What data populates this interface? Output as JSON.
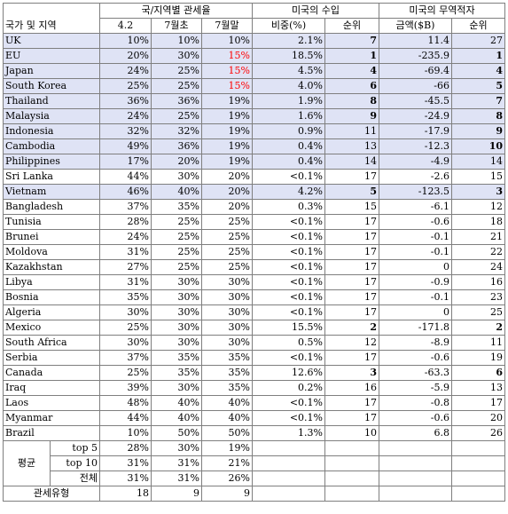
{
  "headers": {
    "country": "국가 및 지역",
    "tariff_group": "국/지역별 관세율",
    "tariff_cols": [
      "4.2",
      "7월초",
      "7월말"
    ],
    "import_group": "미국의 수입",
    "import_cols": [
      "비중(%)",
      "순위"
    ],
    "deficit_group": "미국의 무역적자",
    "deficit_cols": [
      "금액($B)",
      "순위"
    ]
  },
  "rows": [
    {
      "name": "UK",
      "t1": "10%",
      "t2": "10%",
      "t3": "10%",
      "share": "2.1%",
      "rank1": "7",
      "amt": "11.4",
      "rank2": "27",
      "hl": true,
      "red3": false,
      "bold1": true,
      "bold2": false
    },
    {
      "name": "EU",
      "t1": "20%",
      "t2": "30%",
      "t3": "15%",
      "share": "18.5%",
      "rank1": "1",
      "amt": "-235.9",
      "rank2": "1",
      "hl": true,
      "red3": true,
      "bold1": true,
      "bold2": true
    },
    {
      "name": "Japan",
      "t1": "24%",
      "t2": "25%",
      "t3": "15%",
      "share": "4.5%",
      "rank1": "4",
      "amt": "-69.4",
      "rank2": "4",
      "hl": true,
      "red3": true,
      "bold1": true,
      "bold2": true
    },
    {
      "name": "South Korea",
      "t1": "25%",
      "t2": "25%",
      "t3": "15%",
      "share": "4.0%",
      "rank1": "6",
      "amt": "-66",
      "rank2": "5",
      "hl": true,
      "red3": true,
      "bold1": true,
      "bold2": true
    },
    {
      "name": "Thailand",
      "t1": "36%",
      "t2": "36%",
      "t3": "19%",
      "share": "1.9%",
      "rank1": "8",
      "amt": "-45.5",
      "rank2": "7",
      "hl": true,
      "red3": false,
      "bold1": true,
      "bold2": true
    },
    {
      "name": "Malaysia",
      "t1": "24%",
      "t2": "25%",
      "t3": "19%",
      "share": "1.6%",
      "rank1": "9",
      "amt": "-24.9",
      "rank2": "8",
      "hl": true,
      "red3": false,
      "bold1": true,
      "bold2": true
    },
    {
      "name": "Indonesia",
      "t1": "32%",
      "t2": "32%",
      "t3": "19%",
      "share": "0.9%",
      "rank1": "11",
      "amt": "-17.9",
      "rank2": "9",
      "hl": true,
      "red3": false,
      "bold1": false,
      "bold2": true
    },
    {
      "name": "Cambodia",
      "t1": "49%",
      "t2": "36%",
      "t3": "19%",
      "share": "0.4%",
      "rank1": "13",
      "amt": "-12.3",
      "rank2": "10",
      "hl": true,
      "red3": false,
      "bold1": false,
      "bold2": true
    },
    {
      "name": "Philippines",
      "t1": "17%",
      "t2": "20%",
      "t3": "19%",
      "share": "0.4%",
      "rank1": "14",
      "amt": "-4.9",
      "rank2": "14",
      "hl": true,
      "red3": false,
      "bold1": false,
      "bold2": false
    },
    {
      "name": "Sri Lanka",
      "t1": "44%",
      "t2": "30%",
      "t3": "20%",
      "share": "<0.1%",
      "rank1": "17",
      "amt": "-2.6",
      "rank2": "15",
      "hl": false,
      "red3": false,
      "bold1": false,
      "bold2": false
    },
    {
      "name": "Vietnam",
      "t1": "46%",
      "t2": "40%",
      "t3": "20%",
      "share": "4.2%",
      "rank1": "5",
      "amt": "-123.5",
      "rank2": "3",
      "hl": true,
      "red3": false,
      "bold1": true,
      "bold2": true
    },
    {
      "name": "Bangladesh",
      "t1": "37%",
      "t2": "35%",
      "t3": "20%",
      "share": "0.3%",
      "rank1": "15",
      "amt": "-6.1",
      "rank2": "12",
      "hl": false,
      "red3": false,
      "bold1": false,
      "bold2": false
    },
    {
      "name": "Tunisia",
      "t1": "28%",
      "t2": "25%",
      "t3": "25%",
      "share": "<0.1%",
      "rank1": "17",
      "amt": "-0.6",
      "rank2": "18",
      "hl": false,
      "red3": false,
      "bold1": false,
      "bold2": false
    },
    {
      "name": "Brunei",
      "t1": "24%",
      "t2": "25%",
      "t3": "25%",
      "share": "<0.1%",
      "rank1": "17",
      "amt": "-0.1",
      "rank2": "21",
      "hl": false,
      "red3": false,
      "bold1": false,
      "bold2": false
    },
    {
      "name": "Moldova",
      "t1": "31%",
      "t2": "25%",
      "t3": "25%",
      "share": "<0.1%",
      "rank1": "17",
      "amt": "-0.1",
      "rank2": "22",
      "hl": false,
      "red3": false,
      "bold1": false,
      "bold2": false
    },
    {
      "name": "Kazakhstan",
      "t1": "27%",
      "t2": "25%",
      "t3": "25%",
      "share": "<0.1%",
      "rank1": "17",
      "amt": "0",
      "rank2": "24",
      "hl": false,
      "red3": false,
      "bold1": false,
      "bold2": false
    },
    {
      "name": "Libya",
      "t1": "31%",
      "t2": "30%",
      "t3": "30%",
      "share": "<0.1%",
      "rank1": "17",
      "amt": "-0.9",
      "rank2": "16",
      "hl": false,
      "red3": false,
      "bold1": false,
      "bold2": false
    },
    {
      "name": "Bosnia",
      "t1": "35%",
      "t2": "30%",
      "t3": "30%",
      "share": "<0.1%",
      "rank1": "17",
      "amt": "-0.1",
      "rank2": "23",
      "hl": false,
      "red3": false,
      "bold1": false,
      "bold2": false
    },
    {
      "name": "Algeria",
      "t1": "30%",
      "t2": "30%",
      "t3": "30%",
      "share": "<0.1%",
      "rank1": "17",
      "amt": "0",
      "rank2": "25",
      "hl": false,
      "red3": false,
      "bold1": false,
      "bold2": false
    },
    {
      "name": "Mexico",
      "t1": "25%",
      "t2": "30%",
      "t3": "30%",
      "share": "15.5%",
      "rank1": "2",
      "amt": "-171.8",
      "rank2": "2",
      "hl": false,
      "red3": false,
      "bold1": true,
      "bold2": true
    },
    {
      "name": "South Africa",
      "t1": "30%",
      "t2": "30%",
      "t3": "30%",
      "share": "0.5%",
      "rank1": "12",
      "amt": "-8.9",
      "rank2": "11",
      "hl": false,
      "red3": false,
      "bold1": false,
      "bold2": false
    },
    {
      "name": "Serbia",
      "t1": "37%",
      "t2": "35%",
      "t3": "35%",
      "share": "<0.1%",
      "rank1": "17",
      "amt": "-0.6",
      "rank2": "19",
      "hl": false,
      "red3": false,
      "bold1": false,
      "bold2": false
    },
    {
      "name": "Canada",
      "t1": "25%",
      "t2": "35%",
      "t3": "35%",
      "share": "12.6%",
      "rank1": "3",
      "amt": "-63.3",
      "rank2": "6",
      "hl": false,
      "red3": false,
      "bold1": true,
      "bold2": true
    },
    {
      "name": "Iraq",
      "t1": "39%",
      "t2": "30%",
      "t3": "35%",
      "share": "0.2%",
      "rank1": "16",
      "amt": "-5.9",
      "rank2": "13",
      "hl": false,
      "red3": false,
      "bold1": false,
      "bold2": false
    },
    {
      "name": "Laos",
      "t1": "48%",
      "t2": "40%",
      "t3": "40%",
      "share": "<0.1%",
      "rank1": "17",
      "amt": "-0.8",
      "rank2": "17",
      "hl": false,
      "red3": false,
      "bold1": false,
      "bold2": false
    },
    {
      "name": "Myanmar",
      "t1": "44%",
      "t2": "40%",
      "t3": "40%",
      "share": "<0.1%",
      "rank1": "17",
      "amt": "-0.6",
      "rank2": "20",
      "hl": false,
      "red3": false,
      "bold1": false,
      "bold2": false
    },
    {
      "name": "Brazil",
      "t1": "10%",
      "t2": "50%",
      "t3": "50%",
      "share": "1.3%",
      "rank1": "10",
      "amt": "6.8",
      "rank2": "26",
      "hl": false,
      "red3": false,
      "bold1": false,
      "bold2": false
    }
  ],
  "averages": {
    "label": "평균",
    "rows": [
      {
        "name": "top 5",
        "t1": "28%",
        "t2": "30%",
        "t3": "19%"
      },
      {
        "name": "top 10",
        "t1": "31%",
        "t2": "31%",
        "t3": "21%"
      },
      {
        "name": "전체",
        "t1": "31%",
        "t2": "31%",
        "t3": "26%"
      }
    ]
  },
  "tariff_type": {
    "label": "관세유형",
    "t1": "18",
    "t2": "9",
    "t3": "9"
  },
  "colors": {
    "highlight": "#dfe3f5",
    "red": "#ff0000",
    "border": "#7f7f7f"
  }
}
